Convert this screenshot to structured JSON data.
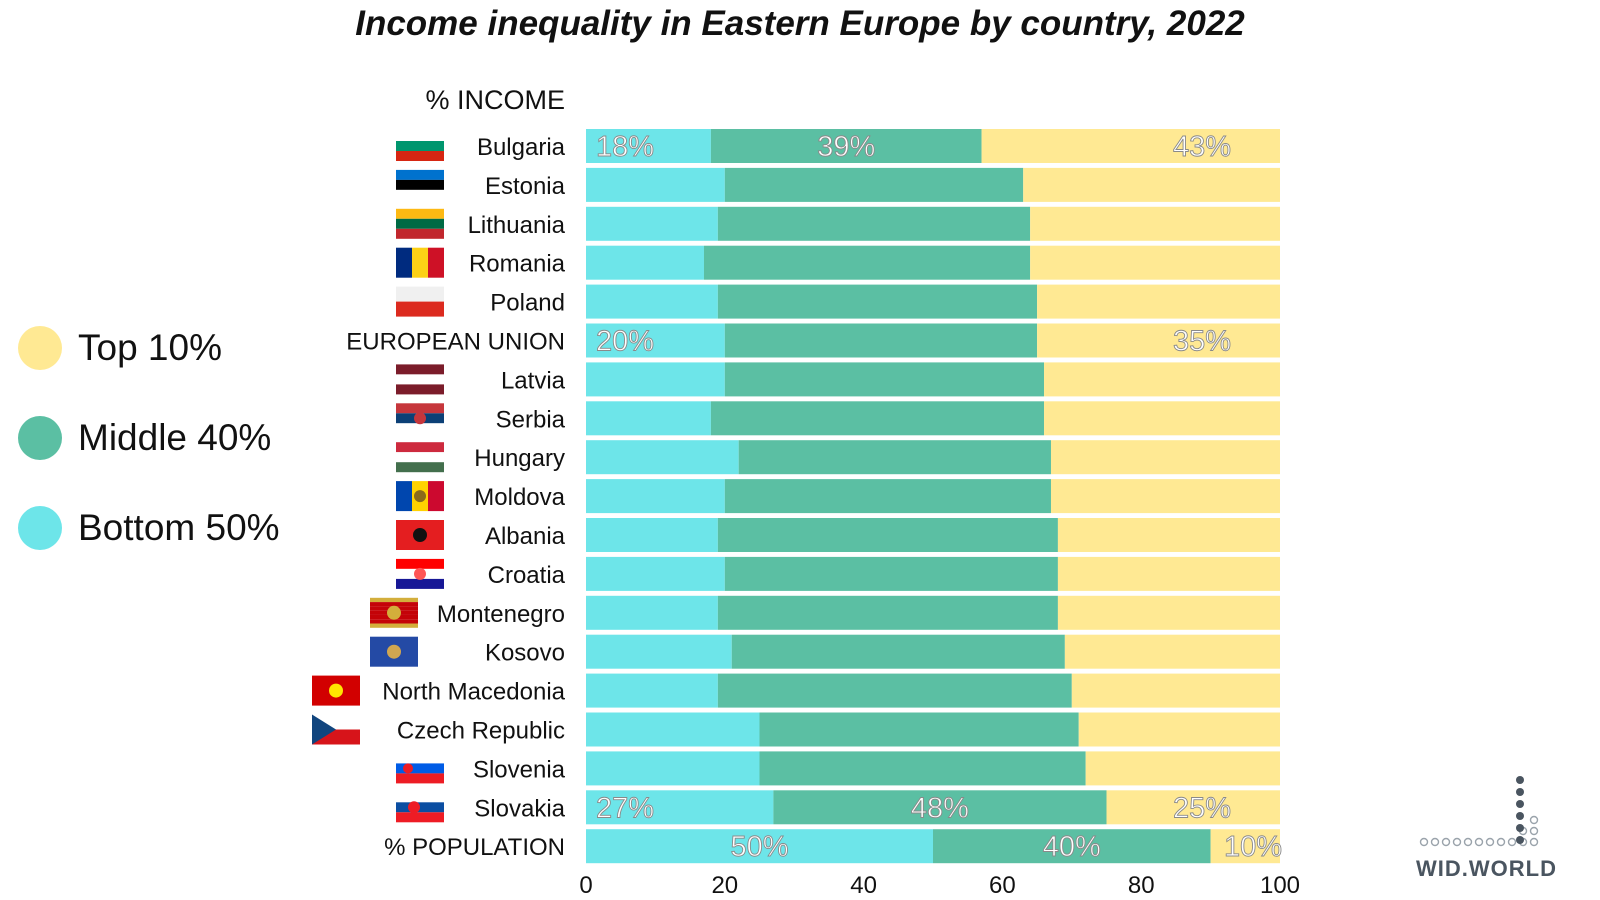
{
  "title": "Income inequality in Eastern Europe by country, 2022",
  "colors": {
    "top10": "#ffe993",
    "middle40": "#5bbfa3",
    "bottom50": "#6de5e9"
  },
  "legend": [
    {
      "label": "Top 10%",
      "color": "#ffe993"
    },
    {
      "label": "Middle 40%",
      "color": "#5bbfa3"
    },
    {
      "label": "Bottom 50%",
      "color": "#6de5e9"
    }
  ],
  "logo": {
    "text": "WID.WORLD"
  },
  "chart_data": {
    "type": "bar",
    "orientation": "horizontal",
    "stacked": true,
    "header_label": "% INCOME",
    "categories": [
      "Bulgaria",
      "Estonia",
      "Lithuania",
      "Romania",
      "Poland",
      "EUROPEAN UNION",
      "Latvia",
      "Serbia",
      "Hungary",
      "Moldova",
      "Albania",
      "Croatia",
      "Montenegro",
      "Kosovo",
      "North Macedonia",
      "Czech Republic",
      "Slovenia",
      "Slovakia",
      "% POPULATION"
    ],
    "series": [
      {
        "name": "Bottom 50%",
        "values": [
          18,
          20,
          19,
          17,
          19,
          20,
          20,
          18,
          22,
          20,
          19,
          20,
          19,
          21,
          19,
          25,
          25,
          27,
          50
        ]
      },
      {
        "name": "Middle 40%",
        "values": [
          39,
          43,
          45,
          47,
          46,
          45,
          46,
          48,
          45,
          47,
          49,
          48,
          49,
          48,
          51,
          46,
          47,
          48,
          40
        ]
      },
      {
        "name": "Top 10%",
        "values": [
          43,
          37,
          36,
          36,
          35,
          35,
          34,
          34,
          33,
          33,
          32,
          32,
          32,
          31,
          30,
          29,
          28,
          25,
          10
        ]
      }
    ],
    "data_labels": [
      {
        "row": "Bulgaria",
        "values": [
          "18%",
          "39%",
          "43%"
        ]
      },
      {
        "row": "EUROPEAN UNION",
        "values": [
          "20%",
          "",
          "35%"
        ]
      },
      {
        "row": "Slovakia",
        "values": [
          "27%",
          "48%",
          "25%"
        ]
      },
      {
        "row": "% POPULATION",
        "values": [
          "50%",
          "40%",
          "10%"
        ]
      }
    ],
    "x_ticks": [
      "0",
      "20",
      "40",
      "60",
      "80",
      "100"
    ],
    "xlim": [
      0,
      100
    ],
    "xlabel": "",
    "ylabel": "",
    "grid": false
  }
}
